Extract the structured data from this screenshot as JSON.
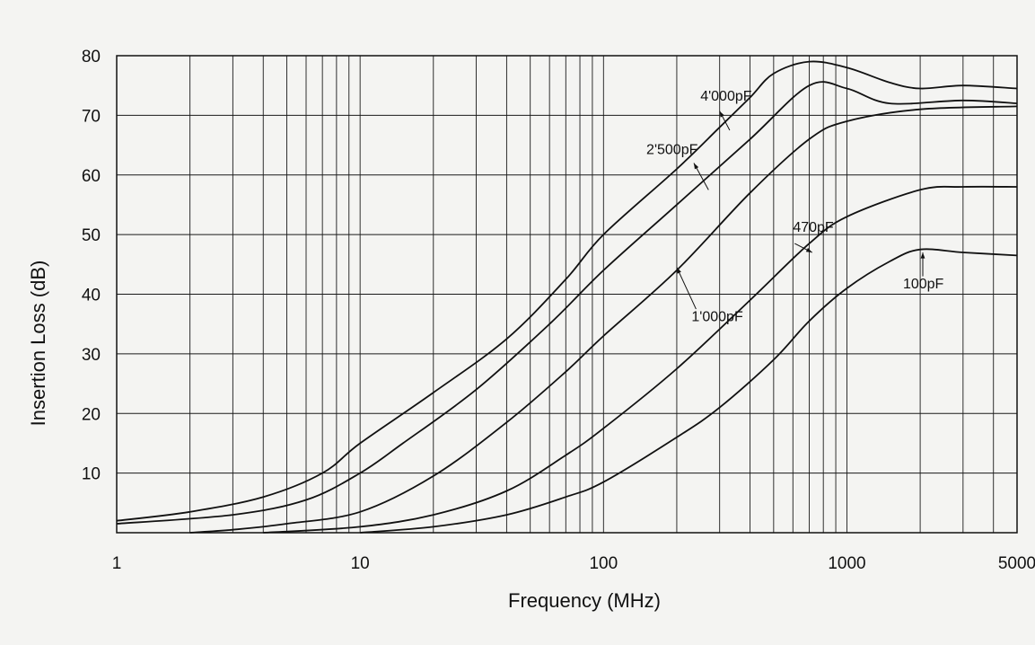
{
  "chart_data": {
    "type": "line",
    "title": "",
    "xlabel": "Frequency (MHz)",
    "ylabel": "Insertion Loss (dB)",
    "xscale": "log",
    "xlim": [
      1,
      5000
    ],
    "ylim": [
      0,
      80
    ],
    "x_ticks": [
      1,
      10,
      100,
      1000,
      5000
    ],
    "x_tick_labels": [
      "1",
      "10",
      "100",
      "1000",
      "5000"
    ],
    "y_ticks": [
      10,
      20,
      30,
      40,
      50,
      60,
      70,
      80
    ],
    "y_tick_labels": [
      "10",
      "20",
      "30",
      "40",
      "50",
      "60",
      "70",
      "80"
    ],
    "grid": true,
    "legend": "none (curves labeled directly)",
    "series": [
      {
        "name": "4'000pF",
        "points": [
          [
            1,
            2
          ],
          [
            2,
            3.5
          ],
          [
            4,
            6
          ],
          [
            7,
            10
          ],
          [
            10,
            15
          ],
          [
            20,
            23.5
          ],
          [
            40,
            32.5
          ],
          [
            70,
            42.5
          ],
          [
            100,
            50
          ],
          [
            200,
            61
          ],
          [
            300,
            68
          ],
          [
            400,
            73
          ],
          [
            500,
            77
          ],
          [
            700,
            79
          ],
          [
            1000,
            78
          ],
          [
            1500,
            75.5
          ],
          [
            2000,
            74.5
          ],
          [
            3000,
            75
          ],
          [
            5000,
            74.5
          ]
        ]
      },
      {
        "name": "2'500pF",
        "points": [
          [
            1,
            1.5
          ],
          [
            3,
            3
          ],
          [
            6,
            5.5
          ],
          [
            10,
            10
          ],
          [
            15,
            15
          ],
          [
            30,
            24
          ],
          [
            60,
            35
          ],
          [
            100,
            44
          ],
          [
            200,
            55
          ],
          [
            400,
            66
          ],
          [
            700,
            75
          ],
          [
            1000,
            74.5
          ],
          [
            1500,
            72
          ],
          [
            3000,
            72.5
          ],
          [
            5000,
            72
          ]
        ]
      },
      {
        "name": "1'000pF",
        "points": [
          [
            2,
            0
          ],
          [
            3,
            0.5
          ],
          [
            5,
            1.5
          ],
          [
            10,
            3.5
          ],
          [
            20,
            9.5
          ],
          [
            40,
            18.5
          ],
          [
            70,
            27
          ],
          [
            100,
            33
          ],
          [
            200,
            44
          ],
          [
            400,
            57
          ],
          [
            700,
            66
          ],
          [
            1000,
            69
          ],
          [
            2000,
            71
          ],
          [
            5000,
            71.5
          ]
        ]
      },
      {
        "name": "470pF",
        "points": [
          [
            4,
            0
          ],
          [
            10,
            1
          ],
          [
            20,
            3
          ],
          [
            40,
            7
          ],
          [
            70,
            13
          ],
          [
            100,
            17.5
          ],
          [
            200,
            27.5
          ],
          [
            400,
            39
          ],
          [
            700,
            48.5
          ],
          [
            1000,
            53
          ],
          [
            2000,
            57.5
          ],
          [
            3000,
            58
          ],
          [
            5000,
            58
          ]
        ]
      },
      {
        "name": "100pF",
        "points": [
          [
            10,
            0
          ],
          [
            20,
            1
          ],
          [
            40,
            3
          ],
          [
            70,
            6
          ],
          [
            100,
            8.5
          ],
          [
            200,
            16
          ],
          [
            300,
            21
          ],
          [
            500,
            29
          ],
          [
            700,
            35.5
          ],
          [
            1000,
            41
          ],
          [
            1500,
            45.5
          ],
          [
            2000,
            47.5
          ],
          [
            3000,
            47
          ],
          [
            5000,
            46.5
          ]
        ]
      }
    ],
    "annotations": [
      "4'000pF",
      "2'500pF",
      "1'000pF",
      "470pF",
      "100pF"
    ]
  }
}
